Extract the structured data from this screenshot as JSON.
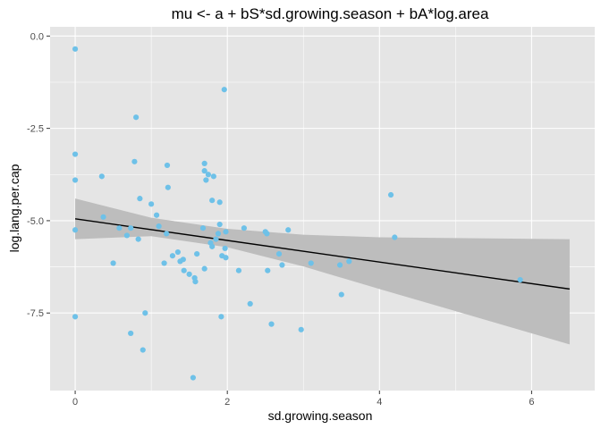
{
  "chart_data": {
    "type": "scatter",
    "title": "mu <- a + bS*sd.growing.season + bA*log.area",
    "xlabel": "sd.growing.season",
    "ylabel": "log.lang.per.cap",
    "xlim": [
      -0.33,
      6.83
    ],
    "ylim": [
      -9.6,
      0.25
    ],
    "x_ticks": [
      0,
      2,
      4,
      6
    ],
    "x_tick_labels": [
      "0",
      "2",
      "4",
      "6"
    ],
    "y_ticks": [
      0.0,
      -2.5,
      -5.0,
      -7.5
    ],
    "y_tick_labels": [
      "0.0",
      "-2.5",
      "-5.0",
      "-7.5"
    ],
    "grid": true,
    "legend": "none",
    "colors": {
      "panel_background": "#e5e5e5",
      "grid": "#ffffff",
      "points": "#6ec1e8",
      "fit_line": "#000000",
      "ribbon": "#bdbdbd"
    },
    "fit_line": {
      "x": [
        0,
        6.5
      ],
      "y": [
        -4.95,
        -6.85
      ]
    },
    "ribbon": {
      "x": [
        0,
        1.0,
        2.0,
        3.0,
        4.0,
        5.0,
        6.5
      ],
      "upper": [
        -4.4,
        -4.92,
        -5.22,
        -5.38,
        -5.45,
        -5.47,
        -5.5
      ],
      "lower": [
        -5.5,
        -5.42,
        -5.72,
        -6.24,
        -6.85,
        -7.45,
        -8.35
      ]
    },
    "points": [
      {
        "x": 0.0,
        "y": -0.35
      },
      {
        "x": 0.0,
        "y": -3.2
      },
      {
        "x": 0.0,
        "y": -3.9
      },
      {
        "x": 0.0,
        "y": -5.25
      },
      {
        "x": 0.0,
        "y": -7.6
      },
      {
        "x": 0.35,
        "y": -3.8
      },
      {
        "x": 0.37,
        "y": -4.9
      },
      {
        "x": 0.5,
        "y": -6.15
      },
      {
        "x": 0.58,
        "y": -5.2
      },
      {
        "x": 0.68,
        "y": -5.4
      },
      {
        "x": 0.73,
        "y": -5.2
      },
      {
        "x": 0.73,
        "y": -8.05
      },
      {
        "x": 0.78,
        "y": -3.4
      },
      {
        "x": 0.8,
        "y": -2.2
      },
      {
        "x": 0.83,
        "y": -5.5
      },
      {
        "x": 0.85,
        "y": -4.4
      },
      {
        "x": 0.89,
        "y": -8.5
      },
      {
        "x": 0.92,
        "y": -7.5
      },
      {
        "x": 1.0,
        "y": -4.55
      },
      {
        "x": 1.07,
        "y": -4.85
      },
      {
        "x": 1.1,
        "y": -5.15
      },
      {
        "x": 1.17,
        "y": -6.15
      },
      {
        "x": 1.2,
        "y": -5.35
      },
      {
        "x": 1.21,
        "y": -3.5
      },
      {
        "x": 1.22,
        "y": -4.1
      },
      {
        "x": 1.28,
        "y": -5.95
      },
      {
        "x": 1.35,
        "y": -5.85
      },
      {
        "x": 1.38,
        "y": -6.1
      },
      {
        "x": 1.42,
        "y": -6.05
      },
      {
        "x": 1.43,
        "y": -6.35
      },
      {
        "x": 1.5,
        "y": -6.45
      },
      {
        "x": 1.55,
        "y": -9.25
      },
      {
        "x": 1.57,
        "y": -6.55
      },
      {
        "x": 1.58,
        "y": -6.65
      },
      {
        "x": 1.6,
        "y": -5.9
      },
      {
        "x": 1.68,
        "y": -5.2
      },
      {
        "x": 1.7,
        "y": -6.3
      },
      {
        "x": 1.7,
        "y": -3.45
      },
      {
        "x": 1.7,
        "y": -3.65
      },
      {
        "x": 1.72,
        "y": -3.9
      },
      {
        "x": 1.75,
        "y": -3.75
      },
      {
        "x": 1.78,
        "y": -5.6
      },
      {
        "x": 1.8,
        "y": -4.45
      },
      {
        "x": 1.8,
        "y": -5.7
      },
      {
        "x": 1.82,
        "y": -3.8
      },
      {
        "x": 1.85,
        "y": -5.5
      },
      {
        "x": 1.88,
        "y": -5.35
      },
      {
        "x": 1.9,
        "y": -4.5
      },
      {
        "x": 1.9,
        "y": -5.1
      },
      {
        "x": 1.92,
        "y": -7.6
      },
      {
        "x": 1.93,
        "y": -5.95
      },
      {
        "x": 1.96,
        "y": -1.45
      },
      {
        "x": 1.97,
        "y": -5.75
      },
      {
        "x": 1.98,
        "y": -6.0
      },
      {
        "x": 1.98,
        "y": -5.3
      },
      {
        "x": 2.15,
        "y": -6.35
      },
      {
        "x": 2.22,
        "y": -5.2
      },
      {
        "x": 2.3,
        "y": -7.25
      },
      {
        "x": 2.5,
        "y": -5.3
      },
      {
        "x": 2.52,
        "y": -5.35
      },
      {
        "x": 2.53,
        "y": -6.35
      },
      {
        "x": 2.58,
        "y": -7.8
      },
      {
        "x": 2.68,
        "y": -5.9
      },
      {
        "x": 2.72,
        "y": -6.2
      },
      {
        "x": 2.8,
        "y": -5.25
      },
      {
        "x": 2.97,
        "y": -7.95
      },
      {
        "x": 3.1,
        "y": -6.15
      },
      {
        "x": 3.48,
        "y": -6.2
      },
      {
        "x": 3.5,
        "y": -7.0
      },
      {
        "x": 3.6,
        "y": -6.1
      },
      {
        "x": 4.15,
        "y": -4.3
      },
      {
        "x": 4.2,
        "y": -5.45
      },
      {
        "x": 5.85,
        "y": -6.6
      }
    ]
  }
}
